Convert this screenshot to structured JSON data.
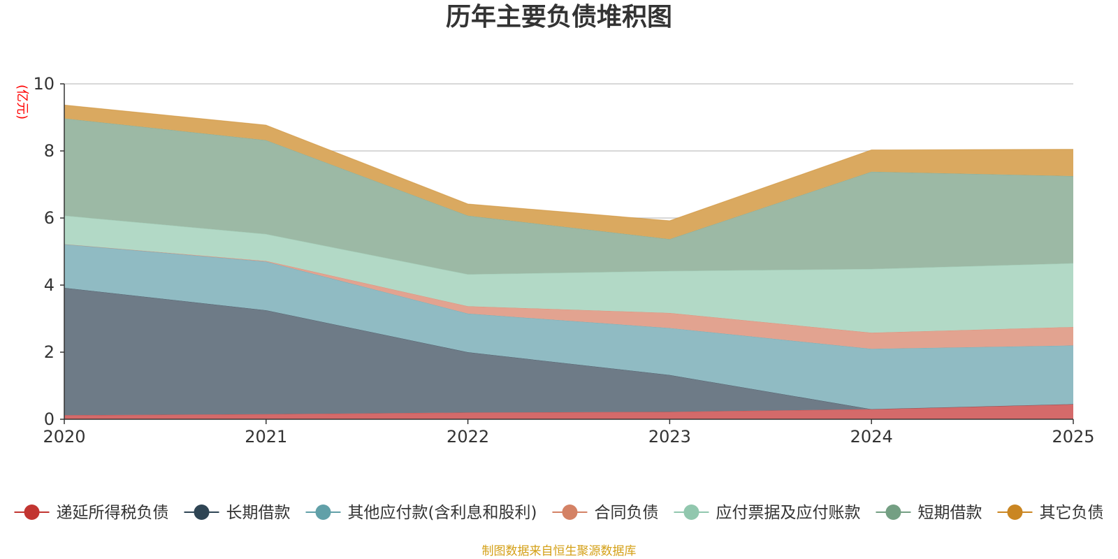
{
  "chart_data": {
    "type": "area",
    "stacked": true,
    "title": "历年主要负债堆积图",
    "unit_label": "(亿元)",
    "x": [
      "2020",
      "2021",
      "2022",
      "2023",
      "2024",
      "2025"
    ],
    "ylim": [
      0,
      10
    ],
    "yticks": [
      0,
      2,
      4,
      6,
      8,
      10
    ],
    "grid": true,
    "legend_position": "bottom",
    "series": [
      {
        "name": "递延所得税负债",
        "color": "#c23531",
        "fill": "#d46a6a",
        "values": [
          0.12,
          0.15,
          0.2,
          0.22,
          0.3,
          0.45
        ]
      },
      {
        "name": "长期借款",
        "color": "#2f4554",
        "fill": "#6e7b87",
        "values": [
          3.8,
          3.1,
          1.8,
          1.1,
          0.0,
          0.0
        ]
      },
      {
        "name": "其他应付款(含利息和股利)",
        "color": "#61a0a8",
        "fill": "#90bbc3",
        "values": [
          1.3,
          1.45,
          1.15,
          1.4,
          1.8,
          1.75
        ]
      },
      {
        "name": "合同负债",
        "color": "#d48265",
        "fill": "#e2a390",
        "values": [
          0.0,
          0.02,
          0.22,
          0.45,
          0.48,
          0.55
        ]
      },
      {
        "name": "应付票据及应付账款",
        "color": "#91c7ae",
        "fill": "#b2d9c6",
        "values": [
          0.85,
          0.8,
          0.95,
          1.25,
          1.9,
          1.9
        ]
      },
      {
        "name": "短期借款",
        "color": "#749f83",
        "fill": "#9cb9a5",
        "values": [
          2.9,
          2.8,
          1.75,
          0.95,
          2.9,
          2.6
        ]
      },
      {
        "name": "其它负债",
        "color": "#ca8622",
        "fill": "#daa960",
        "values": [
          0.4,
          0.45,
          0.35,
          0.55,
          0.65,
          0.8
        ]
      }
    ]
  },
  "footer": {
    "source_text": "制图数据来自恒生聚源数据库",
    "source_color": "#d4a017"
  },
  "colors": {
    "unit_label": "#ff0000",
    "axis": "#333333",
    "grid": "#cccccc"
  }
}
